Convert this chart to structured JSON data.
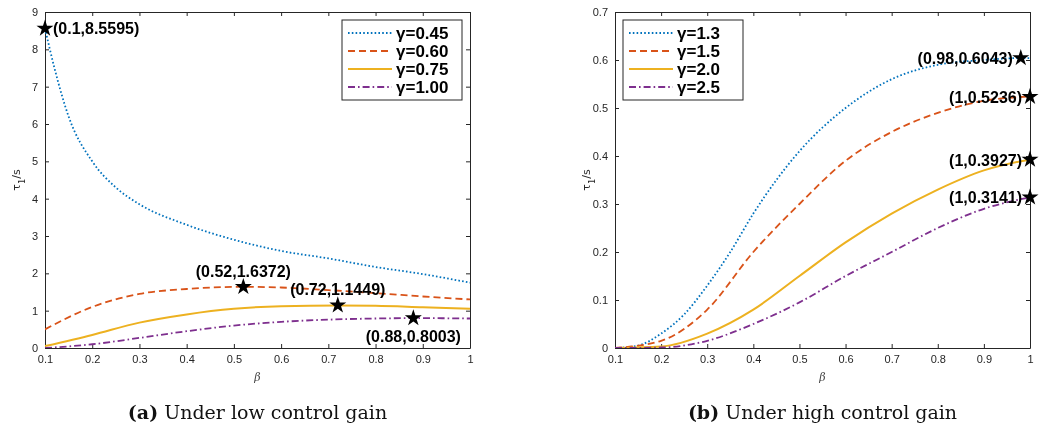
{
  "chart_data": [
    {
      "type": "line",
      "title": "(a) Under low control gain",
      "xlabel": "β",
      "ylabel": "τ$_{1}$/s",
      "xlim": [
        0.1,
        1
      ],
      "ylim": [
        0,
        9
      ],
      "xticks": [
        0.1,
        0.2,
        0.3,
        0.4,
        0.5,
        0.6,
        0.7,
        0.8,
        0.9,
        1
      ],
      "yticks": [
        0,
        1,
        2,
        3,
        4,
        5,
        6,
        7,
        8,
        9
      ],
      "grid": false,
      "legend": "top right",
      "series": [
        {
          "name": "γ=0.45",
          "color": "#0072bd",
          "line_style": "dotted",
          "x": [
            0.1,
            0.12,
            0.15,
            0.2,
            0.25,
            0.3,
            0.4,
            0.5,
            0.6,
            0.7,
            0.8,
            0.9,
            1
          ],
          "values": [
            8.56,
            7.5,
            6.2,
            5.0,
            4.3,
            3.85,
            3.3,
            2.9,
            2.6,
            2.4,
            2.17,
            1.98,
            1.75
          ]
        },
        {
          "type": "scatter",
          "marker": "star",
          "color": "#000000",
          "x": [
            0.1,
            0.52,
            0.72,
            0.88
          ],
          "values": [
            8.5595,
            1.6372,
            1.1449,
            0.8003
          ]
        },
        {
          "name": "γ=0.60",
          "color": "#d95319",
          "line_style": "dashed",
          "x": [
            0.1,
            0.2,
            0.3,
            0.4,
            0.52,
            0.6,
            0.7,
            0.8,
            0.9,
            1
          ],
          "values": [
            0.5,
            1.1,
            1.45,
            1.58,
            1.64,
            1.62,
            1.55,
            1.47,
            1.38,
            1.3
          ]
        },
        {
          "name": "γ=0.75",
          "color": "#edb120",
          "line_style": "solid",
          "x": [
            0.1,
            0.2,
            0.3,
            0.4,
            0.5,
            0.6,
            0.72,
            0.8,
            0.9,
            1
          ],
          "values": [
            0.05,
            0.35,
            0.68,
            0.9,
            1.05,
            1.12,
            1.14,
            1.13,
            1.09,
            1.05
          ]
        },
        {
          "name": "γ=1.00",
          "color": "#7e2f8e",
          "line_style": "dashdot",
          "x": [
            0.1,
            0.2,
            0.3,
            0.4,
            0.5,
            0.6,
            0.7,
            0.8,
            0.88,
            1
          ],
          "values": [
            0.0,
            0.1,
            0.27,
            0.45,
            0.6,
            0.7,
            0.76,
            0.79,
            0.8,
            0.79
          ]
        }
      ],
      "annotations": [
        {
          "text": "(0.1,8.5595)",
          "x": 0.1,
          "y": 8.5595
        },
        {
          "text": "(0.52,1.6372)",
          "x": 0.52,
          "y": 1.6372
        },
        {
          "text": "(0.72,1.1449)",
          "x": 0.72,
          "y": 1.1449
        },
        {
          "text": "(0.88,0.8003)",
          "x": 0.88,
          "y": 0.8003
        }
      ]
    },
    {
      "type": "line",
      "title": "(b) Under high control gain",
      "xlabel": "β",
      "ylabel": "τ$_{1}$/s",
      "xlim": [
        0.1,
        1
      ],
      "ylim": [
        0,
        0.7
      ],
      "xticks": [
        0.1,
        0.2,
        0.3,
        0.4,
        0.5,
        0.6,
        0.7,
        0.8,
        0.9,
        1
      ],
      "yticks": [
        0,
        0.1,
        0.2,
        0.3,
        0.4,
        0.5,
        0.6,
        0.7
      ],
      "grid": false,
      "legend": "top left",
      "series": [
        {
          "name": "γ=1.3",
          "color": "#0072bd",
          "line_style": "dotted",
          "x": [
            0.1,
            0.15,
            0.2,
            0.25,
            0.3,
            0.35,
            0.4,
            0.45,
            0.5,
            0.6,
            0.7,
            0.8,
            0.9,
            0.98,
            1
          ],
          "values": [
            0,
            0.005,
            0.03,
            0.07,
            0.13,
            0.2,
            0.28,
            0.35,
            0.41,
            0.5,
            0.56,
            0.59,
            0.6,
            0.604,
            0.604
          ]
        },
        {
          "name": "γ=1.5",
          "color": "#d95319",
          "line_style": "dashed",
          "x": [
            0.1,
            0.2,
            0.3,
            0.4,
            0.5,
            0.6,
            0.7,
            0.8,
            0.9,
            1
          ],
          "values": [
            0,
            0.015,
            0.08,
            0.2,
            0.3,
            0.39,
            0.45,
            0.49,
            0.515,
            0.524
          ]
        },
        {
          "name": "γ=2.0",
          "color": "#edb120",
          "line_style": "solid",
          "x": [
            0.1,
            0.2,
            0.3,
            0.4,
            0.5,
            0.6,
            0.7,
            0.8,
            0.9,
            1
          ],
          "values": [
            0,
            0.003,
            0.03,
            0.08,
            0.15,
            0.22,
            0.28,
            0.33,
            0.37,
            0.393
          ]
        },
        {
          "name": "γ=2.5",
          "color": "#7e2f8e",
          "line_style": "dashdot",
          "x": [
            0.1,
            0.2,
            0.3,
            0.4,
            0.5,
            0.6,
            0.7,
            0.8,
            0.9,
            1
          ],
          "values": [
            0,
            0.001,
            0.015,
            0.05,
            0.095,
            0.15,
            0.2,
            0.25,
            0.29,
            0.314
          ]
        },
        {
          "type": "scatter",
          "marker": "star",
          "color": "#000000",
          "x": [
            0.98,
            1,
            1,
            1
          ],
          "values": [
            0.6043,
            0.5236,
            0.3927,
            0.3141
          ]
        }
      ],
      "annotations": [
        {
          "text": "(0.98,0.6043)",
          "x": 0.98,
          "y": 0.6043
        },
        {
          "text": "(1,0.5236)",
          "x": 1,
          "y": 0.5236
        },
        {
          "text": "(1,0.3927)",
          "x": 1,
          "y": 0.3927
        },
        {
          "text": "(1,0.3141)",
          "x": 1,
          "y": 0.3141
        }
      ]
    }
  ]
}
